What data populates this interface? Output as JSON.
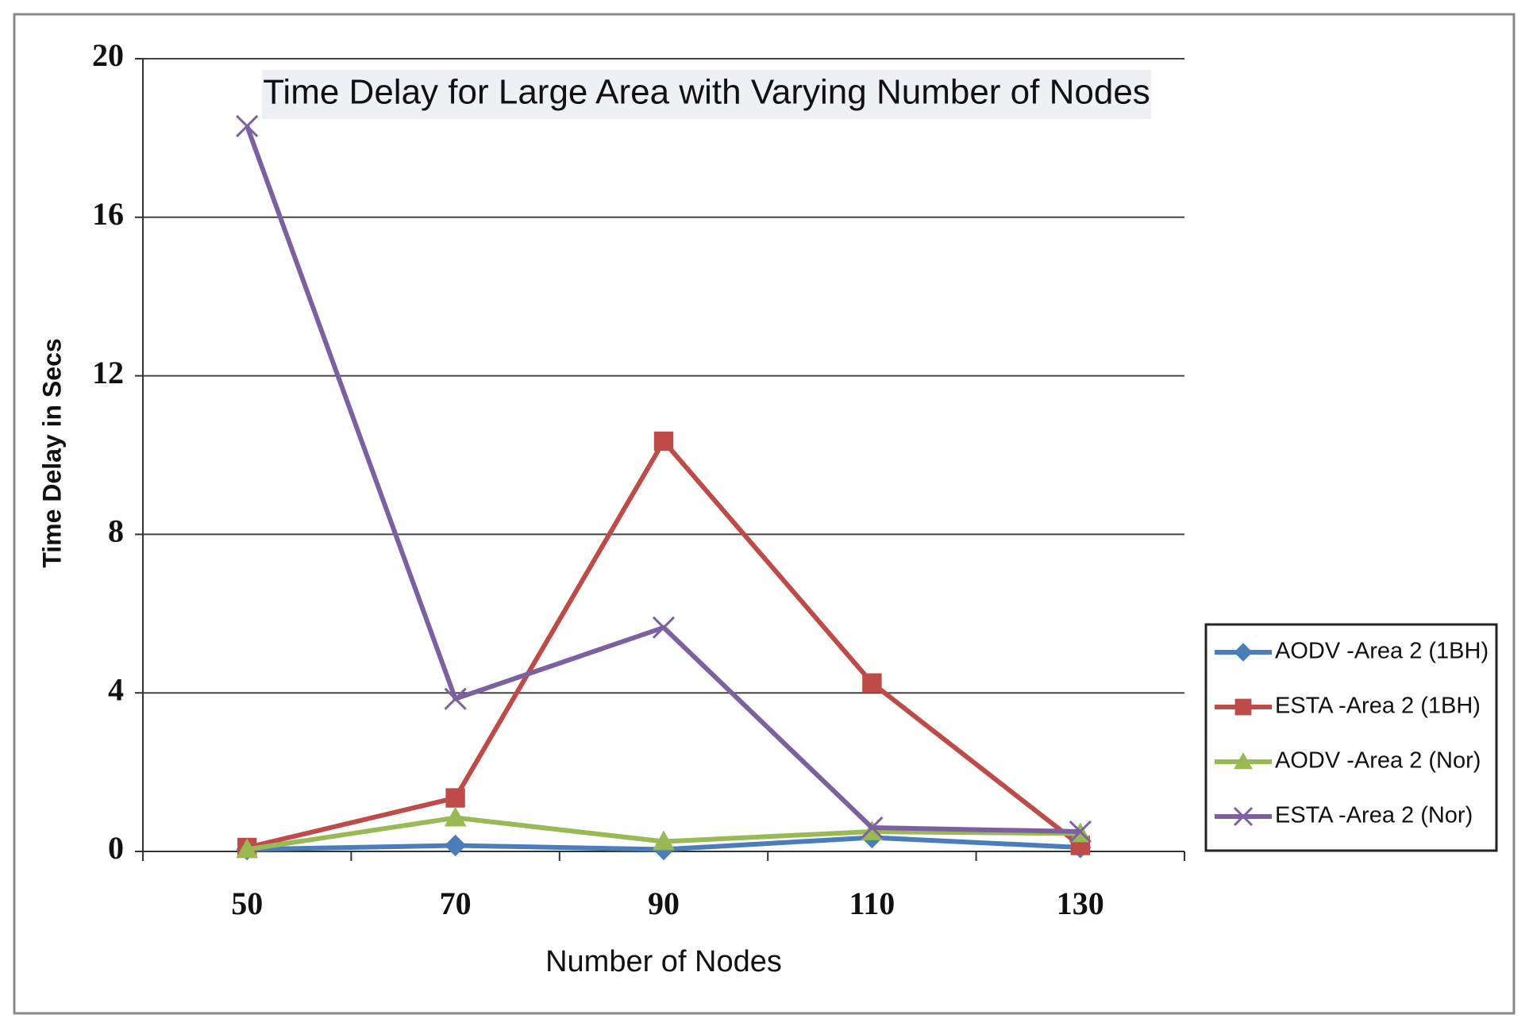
{
  "chart_data": {
    "type": "line",
    "title": "Time Delay for Large Area with Varying Number of Nodes",
    "x_label": "Number of Nodes",
    "y_label": "Time Delay in Secs",
    "categories": [
      "50",
      "70",
      "90",
      "110",
      "130"
    ],
    "series": [
      {
        "name": "AODV -Area 2 (1BH)",
        "color": "#4a7ebb",
        "marker": "diamond",
        "values": [
          0.05,
          0.15,
          0.05,
          0.35,
          0.1
        ]
      },
      {
        "name": "ESTA -Area 2 (1BH)",
        "color": "#be4b48",
        "marker": "square",
        "values": [
          0.1,
          1.35,
          10.35,
          4.25,
          0.15
        ]
      },
      {
        "name": "AODV -Area 2 (Nor)",
        "color": "#98b954",
        "marker": "triangle",
        "values": [
          0.05,
          0.85,
          0.25,
          0.5,
          0.45
        ]
      },
      {
        "name": "ESTA -Area 2 (Nor)",
        "color": "#7d60a0",
        "marker": "x",
        "values": [
          18.3,
          3.85,
          5.65,
          0.6,
          0.5
        ]
      }
    ],
    "ylim": [
      0,
      20
    ],
    "yticks": [
      0,
      4,
      8,
      12,
      16,
      20
    ],
    "grid": true,
    "legend": "right"
  }
}
